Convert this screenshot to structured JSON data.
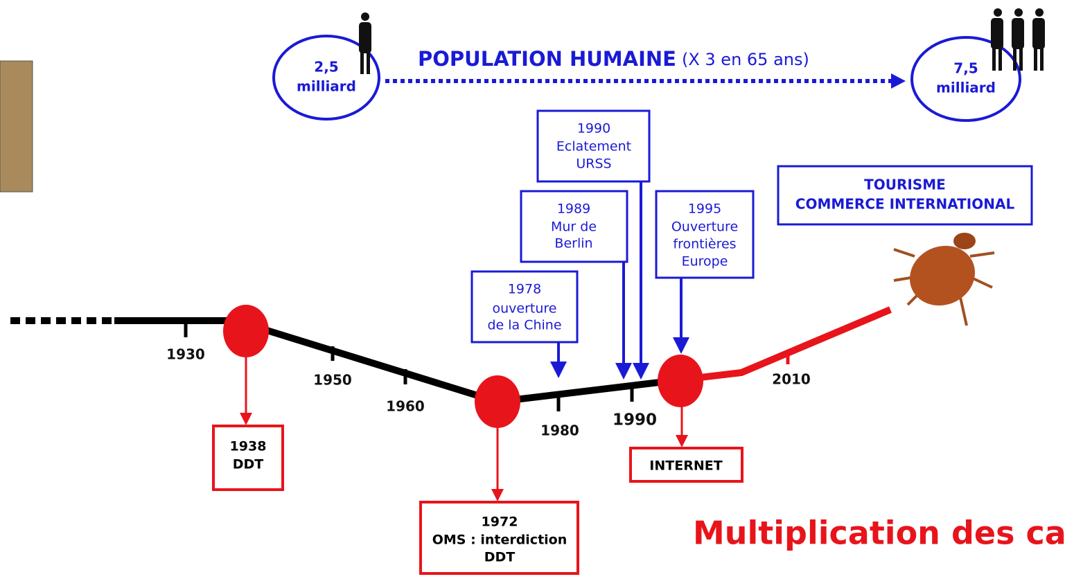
{
  "population": {
    "start": {
      "value": "2,5",
      "unit": "milliard"
    },
    "title": "POPULATION HUMAINE",
    "note": "(X 3 en 65 ans)",
    "end": {
      "value": "7,5",
      "unit": "milliard"
    }
  },
  "blue_events": [
    {
      "lines": [
        "1990",
        "Eclatement",
        "URSS"
      ]
    },
    {
      "lines": [
        "1989",
        "Mur de",
        "Berlin"
      ]
    },
    {
      "lines": [
        "1978",
        "ouverture",
        "de la Chine"
      ]
    },
    {
      "lines": [
        "1995",
        "Ouverture",
        "frontières",
        "Europe"
      ]
    },
    {
      "lines": [
        "TOURISME",
        "COMMERCE INTERNATIONAL"
      ]
    }
  ],
  "timeline_labels": [
    "1930",
    "1950",
    "1960",
    "1980",
    "1990",
    "2010"
  ],
  "red_events": [
    {
      "lines": [
        "1938",
        "DDT"
      ]
    },
    {
      "lines": [
        "1972",
        "OMS : interdiction",
        "DDT"
      ]
    },
    {
      "lines": [
        "INTERNET"
      ]
    }
  ],
  "footer": "Multiplication des cas"
}
